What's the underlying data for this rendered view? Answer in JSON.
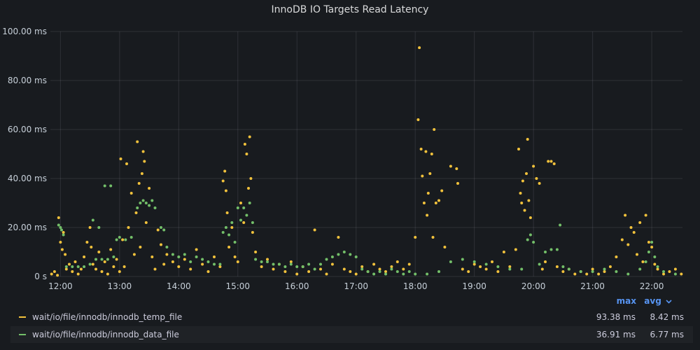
{
  "panel": {
    "title": "InnoDB IO Targets Read Latency"
  },
  "legend": {
    "max_label": "max",
    "avg_label": "avg",
    "sort_icon": "chevron-down-icon"
  },
  "chart_data": {
    "type": "scatter",
    "title": "InnoDB IO Targets Read Latency",
    "y_unit": "ms",
    "ylim": [
      0,
      100
    ],
    "y_ticks": [
      "0 s",
      "20.00 ms",
      "40.00 ms",
      "60.00 ms",
      "80.00 ms",
      "100.00 ms"
    ],
    "x_ticks": [
      "12:00",
      "13:00",
      "14:00",
      "15:00",
      "16:00",
      "17:00",
      "18:00",
      "19:00",
      "20:00",
      "21:00",
      "22:00"
    ],
    "xlim_hours": [
      11.83,
      22.52
    ],
    "grid": true,
    "legend_position": "bottom",
    "series": [
      {
        "name": "wait/io/file/innodb/innodb_temp_file",
        "color": "#f2c23c",
        "max": "93.38 ms",
        "avg": "8.42 ms",
        "points": [
          [
            11.85,
            1
          ],
          [
            11.9,
            2
          ],
          [
            11.95,
            0.5
          ],
          [
            11.97,
            24
          ],
          [
            12.0,
            14
          ],
          [
            12.03,
            11
          ],
          [
            12.05,
            18
          ],
          [
            12.08,
            9
          ],
          [
            12.1,
            3
          ],
          [
            12.15,
            5
          ],
          [
            12.2,
            2
          ],
          [
            12.25,
            6
          ],
          [
            12.3,
            1
          ],
          [
            12.35,
            3
          ],
          [
            12.4,
            8
          ],
          [
            12.45,
            14
          ],
          [
            12.5,
            20
          ],
          [
            12.52,
            12
          ],
          [
            12.55,
            5
          ],
          [
            12.6,
            3
          ],
          [
            12.65,
            10
          ],
          [
            12.7,
            2
          ],
          [
            12.75,
            6
          ],
          [
            12.8,
            1
          ],
          [
            12.85,
            11
          ],
          [
            12.9,
            4
          ],
          [
            12.95,
            7
          ],
          [
            13.0,
            2
          ],
          [
            13.02,
            48
          ],
          [
            13.05,
            15
          ],
          [
            13.08,
            4
          ],
          [
            13.12,
            46
          ],
          [
            13.15,
            20
          ],
          [
            13.2,
            34
          ],
          [
            13.25,
            9
          ],
          [
            13.28,
            26
          ],
          [
            13.3,
            55
          ],
          [
            13.33,
            38
          ],
          [
            13.35,
            12
          ],
          [
            13.38,
            42
          ],
          [
            13.4,
            51
          ],
          [
            13.42,
            47
          ],
          [
            13.45,
            22
          ],
          [
            13.5,
            36
          ],
          [
            13.55,
            8
          ],
          [
            13.6,
            3
          ],
          [
            13.65,
            19
          ],
          [
            13.7,
            13
          ],
          [
            13.75,
            5
          ],
          [
            13.8,
            9
          ],
          [
            13.9,
            6
          ],
          [
            14.0,
            4
          ],
          [
            14.1,
            7
          ],
          [
            14.2,
            3
          ],
          [
            14.3,
            11
          ],
          [
            14.4,
            5
          ],
          [
            14.5,
            2
          ],
          [
            14.6,
            8
          ],
          [
            14.7,
            4
          ],
          [
            14.75,
            39
          ],
          [
            14.78,
            43
          ],
          [
            14.8,
            35
          ],
          [
            14.82,
            26
          ],
          [
            14.85,
            12
          ],
          [
            14.9,
            20
          ],
          [
            14.95,
            8
          ],
          [
            15.0,
            6
          ],
          [
            15.05,
            30
          ],
          [
            15.1,
            22
          ],
          [
            15.12,
            54
          ],
          [
            15.15,
            50
          ],
          [
            15.18,
            36
          ],
          [
            15.2,
            57
          ],
          [
            15.22,
            40
          ],
          [
            15.25,
            18
          ],
          [
            15.3,
            10
          ],
          [
            15.4,
            4
          ],
          [
            15.5,
            7
          ],
          [
            15.6,
            3
          ],
          [
            15.7,
            5
          ],
          [
            15.8,
            2
          ],
          [
            15.9,
            6
          ],
          [
            16.0,
            1
          ],
          [
            16.1,
            4
          ],
          [
            16.2,
            2
          ],
          [
            16.3,
            19
          ],
          [
            16.4,
            3
          ],
          [
            16.5,
            1
          ],
          [
            16.6,
            5
          ],
          [
            16.7,
            16
          ],
          [
            16.8,
            3
          ],
          [
            16.9,
            2
          ],
          [
            17.0,
            1
          ],
          [
            17.1,
            4
          ],
          [
            17.2,
            2
          ],
          [
            17.3,
            5
          ],
          [
            17.4,
            3
          ],
          [
            17.5,
            2
          ],
          [
            17.6,
            4
          ],
          [
            17.7,
            6
          ],
          [
            17.8,
            3
          ],
          [
            17.9,
            5
          ],
          [
            18.0,
            16
          ],
          [
            18.05,
            64
          ],
          [
            18.07,
            93.4
          ],
          [
            18.1,
            52
          ],
          [
            18.12,
            41
          ],
          [
            18.15,
            30
          ],
          [
            18.18,
            51
          ],
          [
            18.2,
            25
          ],
          [
            18.22,
            34
          ],
          [
            18.25,
            42
          ],
          [
            18.28,
            50
          ],
          [
            18.3,
            16
          ],
          [
            18.32,
            60
          ],
          [
            18.35,
            30
          ],
          [
            18.4,
            31
          ],
          [
            18.45,
            35
          ],
          [
            18.5,
            12
          ],
          [
            18.6,
            45
          ],
          [
            18.7,
            44
          ],
          [
            18.72,
            38
          ],
          [
            18.8,
            3
          ],
          [
            18.9,
            2
          ],
          [
            19.0,
            5
          ],
          [
            19.1,
            4
          ],
          [
            19.2,
            3
          ],
          [
            19.3,
            6
          ],
          [
            19.4,
            2
          ],
          [
            19.5,
            10
          ],
          [
            19.6,
            4
          ],
          [
            19.7,
            11
          ],
          [
            19.75,
            52
          ],
          [
            19.78,
            34
          ],
          [
            19.8,
            30
          ],
          [
            19.82,
            39
          ],
          [
            19.85,
            27
          ],
          [
            19.88,
            42
          ],
          [
            19.9,
            56
          ],
          [
            19.92,
            31
          ],
          [
            19.95,
            24
          ],
          [
            20.0,
            45
          ],
          [
            20.05,
            40
          ],
          [
            20.1,
            38
          ],
          [
            20.15,
            3
          ],
          [
            20.2,
            6
          ],
          [
            20.25,
            47
          ],
          [
            20.3,
            47
          ],
          [
            20.35,
            46
          ],
          [
            20.4,
            4
          ],
          [
            20.5,
            2
          ],
          [
            20.6,
            3
          ],
          [
            20.7,
            1
          ],
          [
            20.8,
            2
          ],
          [
            20.9,
            1
          ],
          [
            21.0,
            3
          ],
          [
            21.1,
            1
          ],
          [
            21.2,
            2
          ],
          [
            21.3,
            4
          ],
          [
            21.4,
            8
          ],
          [
            21.5,
            15
          ],
          [
            21.55,
            25
          ],
          [
            21.6,
            13
          ],
          [
            21.65,
            20
          ],
          [
            21.7,
            18
          ],
          [
            21.75,
            9
          ],
          [
            21.8,
            22
          ],
          [
            21.85,
            6
          ],
          [
            21.9,
            25
          ],
          [
            21.95,
            14
          ],
          [
            22.0,
            12
          ],
          [
            22.05,
            5
          ],
          [
            22.1,
            3
          ],
          [
            22.2,
            1
          ],
          [
            22.3,
            2
          ],
          [
            22.4,
            3
          ],
          [
            22.5,
            1
          ]
        ]
      },
      {
        "name": "wait/io/file/innodb/innodb_data_file",
        "color": "#73bf69",
        "max": "36.91 ms",
        "avg": "6.77 ms",
        "points": [
          [
            11.97,
            21
          ],
          [
            12.0,
            20
          ],
          [
            12.02,
            19
          ],
          [
            12.05,
            17
          ],
          [
            12.1,
            4
          ],
          [
            12.2,
            4
          ],
          [
            12.3,
            4
          ],
          [
            12.4,
            4
          ],
          [
            12.5,
            5
          ],
          [
            12.6,
            7
          ],
          [
            12.7,
            7
          ],
          [
            12.8,
            7
          ],
          [
            12.9,
            8
          ],
          [
            12.95,
            15
          ],
          [
            13.0,
            16
          ],
          [
            13.1,
            15
          ],
          [
            13.2,
            16
          ],
          [
            13.3,
            28
          ],
          [
            13.35,
            30
          ],
          [
            13.4,
            31
          ],
          [
            13.45,
            30
          ],
          [
            13.5,
            29
          ],
          [
            13.55,
            31
          ],
          [
            13.6,
            28
          ],
          [
            12.75,
            37
          ],
          [
            12.85,
            37
          ],
          [
            12.65,
            20
          ],
          [
            12.55,
            23
          ],
          [
            13.7,
            20
          ],
          [
            13.75,
            19
          ],
          [
            13.8,
            12
          ],
          [
            13.9,
            9
          ],
          [
            14.0,
            8
          ],
          [
            14.1,
            9
          ],
          [
            14.2,
            6
          ],
          [
            14.3,
            8
          ],
          [
            14.4,
            7
          ],
          [
            14.5,
            6
          ],
          [
            14.6,
            5
          ],
          [
            14.7,
            5
          ],
          [
            14.75,
            18
          ],
          [
            14.8,
            20
          ],
          [
            14.85,
            17
          ],
          [
            14.9,
            22
          ],
          [
            14.95,
            14
          ],
          [
            15.0,
            28
          ],
          [
            15.05,
            23
          ],
          [
            15.1,
            28
          ],
          [
            15.15,
            25
          ],
          [
            15.2,
            30
          ],
          [
            15.25,
            22
          ],
          [
            15.3,
            7
          ],
          [
            15.4,
            6
          ],
          [
            15.5,
            6
          ],
          [
            15.6,
            5
          ],
          [
            15.7,
            5
          ],
          [
            15.8,
            4
          ],
          [
            15.9,
            5
          ],
          [
            16.0,
            4
          ],
          [
            16.1,
            4
          ],
          [
            16.2,
            5
          ],
          [
            16.3,
            3
          ],
          [
            16.4,
            5
          ],
          [
            16.5,
            7
          ],
          [
            16.6,
            8
          ],
          [
            16.7,
            9
          ],
          [
            16.8,
            10
          ],
          [
            16.9,
            9
          ],
          [
            17.0,
            8
          ],
          [
            17.1,
            3
          ],
          [
            17.2,
            2
          ],
          [
            17.3,
            1
          ],
          [
            17.4,
            2
          ],
          [
            17.5,
            1
          ],
          [
            17.6,
            3
          ],
          [
            17.7,
            2
          ],
          [
            17.8,
            1
          ],
          [
            17.9,
            2
          ],
          [
            18.0,
            1
          ],
          [
            18.2,
            1
          ],
          [
            18.4,
            2
          ],
          [
            18.6,
            6
          ],
          [
            18.8,
            7
          ],
          [
            19.0,
            6
          ],
          [
            19.2,
            5
          ],
          [
            19.4,
            4
          ],
          [
            19.6,
            3
          ],
          [
            19.8,
            3
          ],
          [
            19.9,
            15
          ],
          [
            19.95,
            17
          ],
          [
            20.0,
            14
          ],
          [
            20.1,
            5
          ],
          [
            20.2,
            10
          ],
          [
            20.3,
            11
          ],
          [
            20.4,
            11
          ],
          [
            20.45,
            21
          ],
          [
            20.5,
            4
          ],
          [
            20.6,
            3
          ],
          [
            20.8,
            2
          ],
          [
            21.0,
            2
          ],
          [
            21.2,
            3
          ],
          [
            21.4,
            2
          ],
          [
            21.6,
            1
          ],
          [
            21.8,
            3
          ],
          [
            21.9,
            6
          ],
          [
            21.95,
            10
          ],
          [
            22.0,
            14
          ],
          [
            22.05,
            8
          ],
          [
            22.1,
            4
          ],
          [
            22.2,
            2
          ],
          [
            22.4,
            1
          ]
        ]
      }
    ]
  }
}
